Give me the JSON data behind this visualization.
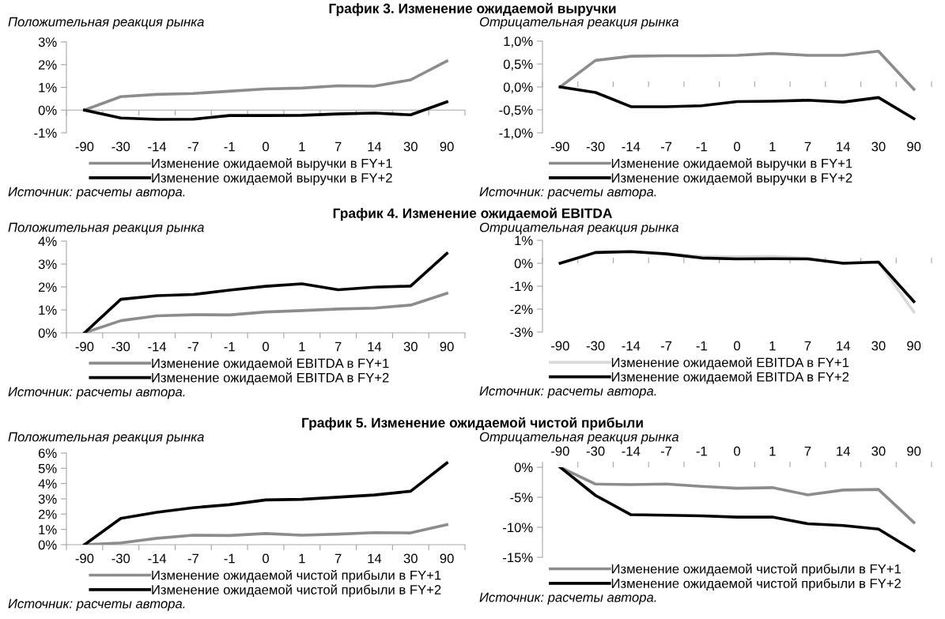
{
  "chart_data": [
    {
      "type": "line",
      "title": "График 3. Изменение ожидаемой выручки",
      "subtitle": "Положительная реакция рынка",
      "categories": [
        "-90",
        "-30",
        "-14",
        "-7",
        "-1",
        "0",
        "1",
        "7",
        "14",
        "30",
        "90"
      ],
      "ylim": [
        -1,
        3
      ],
      "yticks": [
        {
          "value": -1,
          "label": "-1%"
        },
        {
          "value": 0,
          "label": "0%"
        },
        {
          "value": 1,
          "label": "1%"
        },
        {
          "value": 2,
          "label": "2%"
        },
        {
          "value": 3,
          "label": "3%"
        }
      ],
      "grid": false,
      "legend": "bottom",
      "marker": "none",
      "line_style": "solid",
      "series": [
        {
          "name": "Изменение ожидаемой выручки в FY+1",
          "color": "#8c8c8c",
          "values": [
            0,
            0.59,
            0.69,
            0.73,
            0.83,
            0.93,
            0.97,
            1.07,
            1.05,
            1.33,
            2.16
          ]
        },
        {
          "name": "Изменение ожидаемой выручки в FY+2",
          "color": "#000000",
          "values": [
            0,
            -0.35,
            -0.41,
            -0.4,
            -0.24,
            -0.24,
            -0.23,
            -0.17,
            -0.13,
            -0.21,
            0.36
          ]
        }
      ],
      "annotations": [
        "Источник: расчеты автора."
      ]
    },
    {
      "type": "line",
      "subtitle": "Отрицательная реакция рынка",
      "categories": [
        "-90",
        "-30",
        "-14",
        "-7",
        "-1",
        "0",
        "1",
        "7",
        "14",
        "30",
        "90"
      ],
      "ylim": [
        -1,
        1
      ],
      "yticks": [
        {
          "value": -1,
          "label": "-1,0%"
        },
        {
          "value": -0.5,
          "label": "-0,5%"
        },
        {
          "value": 0,
          "label": "0,0%"
        },
        {
          "value": 0.5,
          "label": "0,5%"
        },
        {
          "value": 1,
          "label": "1,0%"
        }
      ],
      "grid": false,
      "legend": "bottom",
      "marker": "none",
      "line_style": "solid",
      "series": [
        {
          "name": "Изменение ожидаемой выручки в FY+1",
          "color": "#8c8c8c",
          "values": [
            0,
            0.58,
            0.67,
            0.68,
            0.68,
            0.69,
            0.73,
            0.69,
            0.69,
            0.78,
            -0.05
          ]
        },
        {
          "name": "Изменение ожидаемой выручки в FY+2",
          "color": "#000000",
          "values": [
            0,
            -0.12,
            -0.43,
            -0.43,
            -0.41,
            -0.32,
            -0.31,
            -0.29,
            -0.33,
            -0.23,
            -0.69
          ]
        }
      ],
      "annotations": [
        "Источник: расчеты автора."
      ]
    },
    {
      "type": "line",
      "title": "График 4. Изменение ожидаемой EBITDA",
      "subtitle": "Положительная реакция рынка",
      "categories": [
        "-90",
        "-30",
        "-14",
        "-7",
        "-1",
        "0",
        "1",
        "7",
        "14",
        "30",
        "90"
      ],
      "ylim": [
        0,
        4
      ],
      "yticks": [
        {
          "value": 0,
          "label": "0%"
        },
        {
          "value": 1,
          "label": "1%"
        },
        {
          "value": 2,
          "label": "2%"
        },
        {
          "value": 3,
          "label": "3%"
        },
        {
          "value": 4,
          "label": "4%"
        }
      ],
      "grid": false,
      "legend": "bottom",
      "marker": "none",
      "line_style": "solid",
      "series": [
        {
          "name": "Изменение ожидаемой EBITDA в FY+1",
          "color": "#8c8c8c",
          "values": [
            0,
            0.53,
            0.74,
            0.79,
            0.78,
            0.91,
            0.97,
            1.04,
            1.08,
            1.21,
            1.72
          ]
        },
        {
          "name": "Изменение ожидаемой EBITDA в FY+2",
          "color": "#000000",
          "values": [
            0,
            1.46,
            1.62,
            1.67,
            1.86,
            2.03,
            2.14,
            1.88,
            1.99,
            2.04,
            3.46
          ]
        }
      ],
      "annotations": [
        "Источник: расчеты автора."
      ]
    },
    {
      "type": "line",
      "subtitle": "Отрицательная реакция рынка",
      "categories": [
        "-90",
        "-30",
        "-14",
        "-7",
        "-1",
        "0",
        "1",
        "7",
        "14",
        "30",
        "90"
      ],
      "ylim": [
        -3,
        1
      ],
      "yticks": [
        {
          "value": -3,
          "label": "-3%"
        },
        {
          "value": -2,
          "label": "-2%"
        },
        {
          "value": -1,
          "label": "-1%"
        },
        {
          "value": 0,
          "label": "0%"
        },
        {
          "value": 1,
          "label": "1%"
        }
      ],
      "grid": false,
      "legend": "bottom",
      "marker": "none",
      "line_style": "solid",
      "series": [
        {
          "name": "Изменение ожидаемой EBITDA в FY+1",
          "color": "#d9d9d9",
          "values": [
            0,
            0.45,
            0.5,
            0.42,
            0.3,
            0.28,
            0.3,
            0.22,
            0,
            0.05,
            -2.13
          ]
        },
        {
          "name": "Изменение ожидаемой EBITDA в FY+2",
          "color": "#000000",
          "values": [
            0,
            0.47,
            0.51,
            0.41,
            0.23,
            0.19,
            0.2,
            0.19,
            0,
            0.05,
            -1.67
          ]
        }
      ],
      "annotations": [
        "Источник: расчеты автора."
      ]
    },
    {
      "type": "line",
      "title": "График 5. Изменение ожидаемой чистой прибыли",
      "subtitle": "Положительная реакция рынка",
      "categories": [
        "-90",
        "-30",
        "-14",
        "-7",
        "-1",
        "0",
        "1",
        "7",
        "14",
        "30",
        "90"
      ],
      "ylim": [
        0,
        6
      ],
      "yticks": [
        {
          "value": 0,
          "label": "0%"
        },
        {
          "value": 1,
          "label": "1%"
        },
        {
          "value": 2,
          "label": "2%"
        },
        {
          "value": 3,
          "label": "3%"
        },
        {
          "value": 4,
          "label": "4%"
        },
        {
          "value": 5,
          "label": "5%"
        },
        {
          "value": 6,
          "label": "6%"
        }
      ],
      "grid": false,
      "legend": "bottom",
      "marker": "none",
      "line_style": "solid",
      "series": [
        {
          "name": "Изменение ожидаемой чистой прибыли в FY+1",
          "color": "#8c8c8c",
          "values": [
            0,
            0.12,
            0.42,
            0.62,
            0.6,
            0.73,
            0.62,
            0.69,
            0.79,
            0.77,
            1.31
          ]
        },
        {
          "name": "Изменение ожидаемой чистой прибыли в FY+2",
          "color": "#000000",
          "values": [
            0,
            1.72,
            2.12,
            2.42,
            2.62,
            2.93,
            2.97,
            3.11,
            3.25,
            3.5,
            5.35
          ]
        }
      ],
      "annotations": [
        "Источник: расчеты автора."
      ]
    },
    {
      "type": "line",
      "subtitle": "Отрицательная реакция рынка",
      "categories": [
        "-90",
        "-30",
        "-14",
        "-7",
        "-1",
        "0",
        "1",
        "7",
        "14",
        "30",
        "90"
      ],
      "ylim": [
        -15,
        0
      ],
      "yticks": [
        {
          "value": -15,
          "label": "-15%"
        },
        {
          "value": -10,
          "label": "-10%"
        },
        {
          "value": -5,
          "label": "-5%"
        },
        {
          "value": 0,
          "label": "0%"
        }
      ],
      "grid": false,
      "legend": "bottom",
      "marker": "none",
      "line_style": "solid",
      "series": [
        {
          "name": "Изменение ожидаемой чистой прибыли в FY+1",
          "color": "#8c8c8c",
          "values": [
            0,
            -2.8,
            -2.9,
            -2.8,
            -3.2,
            -3.5,
            -3.4,
            -4.6,
            -3.8,
            -3.7,
            -9.2
          ]
        },
        {
          "name": "Изменение ожидаемой чистой прибыли в FY+2",
          "color": "#000000",
          "values": [
            0,
            -4.7,
            -7.9,
            -8.0,
            -8.1,
            -8.3,
            -8.3,
            -9.4,
            -9.7,
            -10.3,
            -13.9
          ]
        }
      ],
      "annotations": [
        "Источник: расчеты автора."
      ]
    }
  ]
}
